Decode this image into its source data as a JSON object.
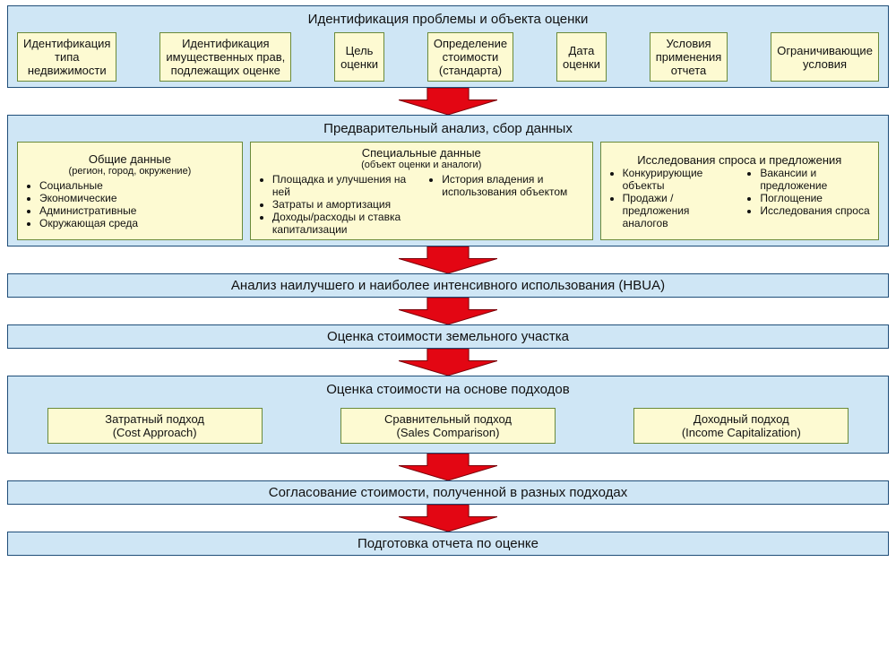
{
  "colors": {
    "stage_bg": "#cfe6f5",
    "stage_border": "#1f4e79",
    "box_bg": "#fdfad2",
    "box_border": "#6a8a3a",
    "arrow_fill": "#e30613",
    "arrow_stroke": "#7a0008",
    "text": "#111111"
  },
  "fonts": {
    "title_pt": 15,
    "box_pt": 13,
    "small_pt": 11,
    "list_pt": 12
  },
  "layout": {
    "arrow_w": 110,
    "arrow_h": 30
  },
  "stage1": {
    "title": "Идентификация проблемы и объекта оценки",
    "boxes": [
      "Идентификация\nтипа\nнедвижимости",
      "Идентификация\nимущественных прав,\nподлежащих оценке",
      "Цель\nоценки",
      "Определение\nстоимости\n(стандарта)",
      "Дата\nоценки",
      "Условия\nприменения\nотчета",
      "Ограничивающие\nусловия"
    ]
  },
  "stage2": {
    "title": "Предварительный анализ, сбор данных",
    "col_general": {
      "title": "Общие данные",
      "sub": "(регион, город, окружение)",
      "items": [
        "Социальные",
        "Экономические",
        "Административные",
        "Окружающая среда"
      ]
    },
    "col_special": {
      "title": "Специальные данные",
      "sub": "(объект оценки и аналоги)",
      "left": [
        "Площадка и улучшения на ней",
        "Затраты и амортизация",
        "Доходы/расходы и ставка капитализации"
      ],
      "right": [
        "История владения и использования объектом"
      ]
    },
    "col_demand": {
      "title": "Исследования спроса и предложения",
      "left": [
        "Конкурирующие объекты",
        "Продажи / предложения аналогов"
      ],
      "right": [
        "Вакансии и предложение",
        "Поглощение",
        "Исследования спроса"
      ]
    }
  },
  "stage3": {
    "title": "Анализ наилучшего и наиболее интенсивного использования (HBUA)"
  },
  "stage4": {
    "title": "Оценка стоимости земельного участка"
  },
  "stage5": {
    "title": "Оценка стоимости на основе подходов",
    "approaches": [
      {
        "ru": "Затратный подход",
        "en": "(Cost Approach)"
      },
      {
        "ru": "Сравнительный подход",
        "en": "(Sales Comparison)"
      },
      {
        "ru": "Доходный подход",
        "en": "(Income Capitalization)"
      }
    ]
  },
  "stage6": {
    "title": "Согласование стоимости, полученной в разных подходах"
  },
  "stage7": {
    "title": "Подготовка отчета по оценке"
  }
}
